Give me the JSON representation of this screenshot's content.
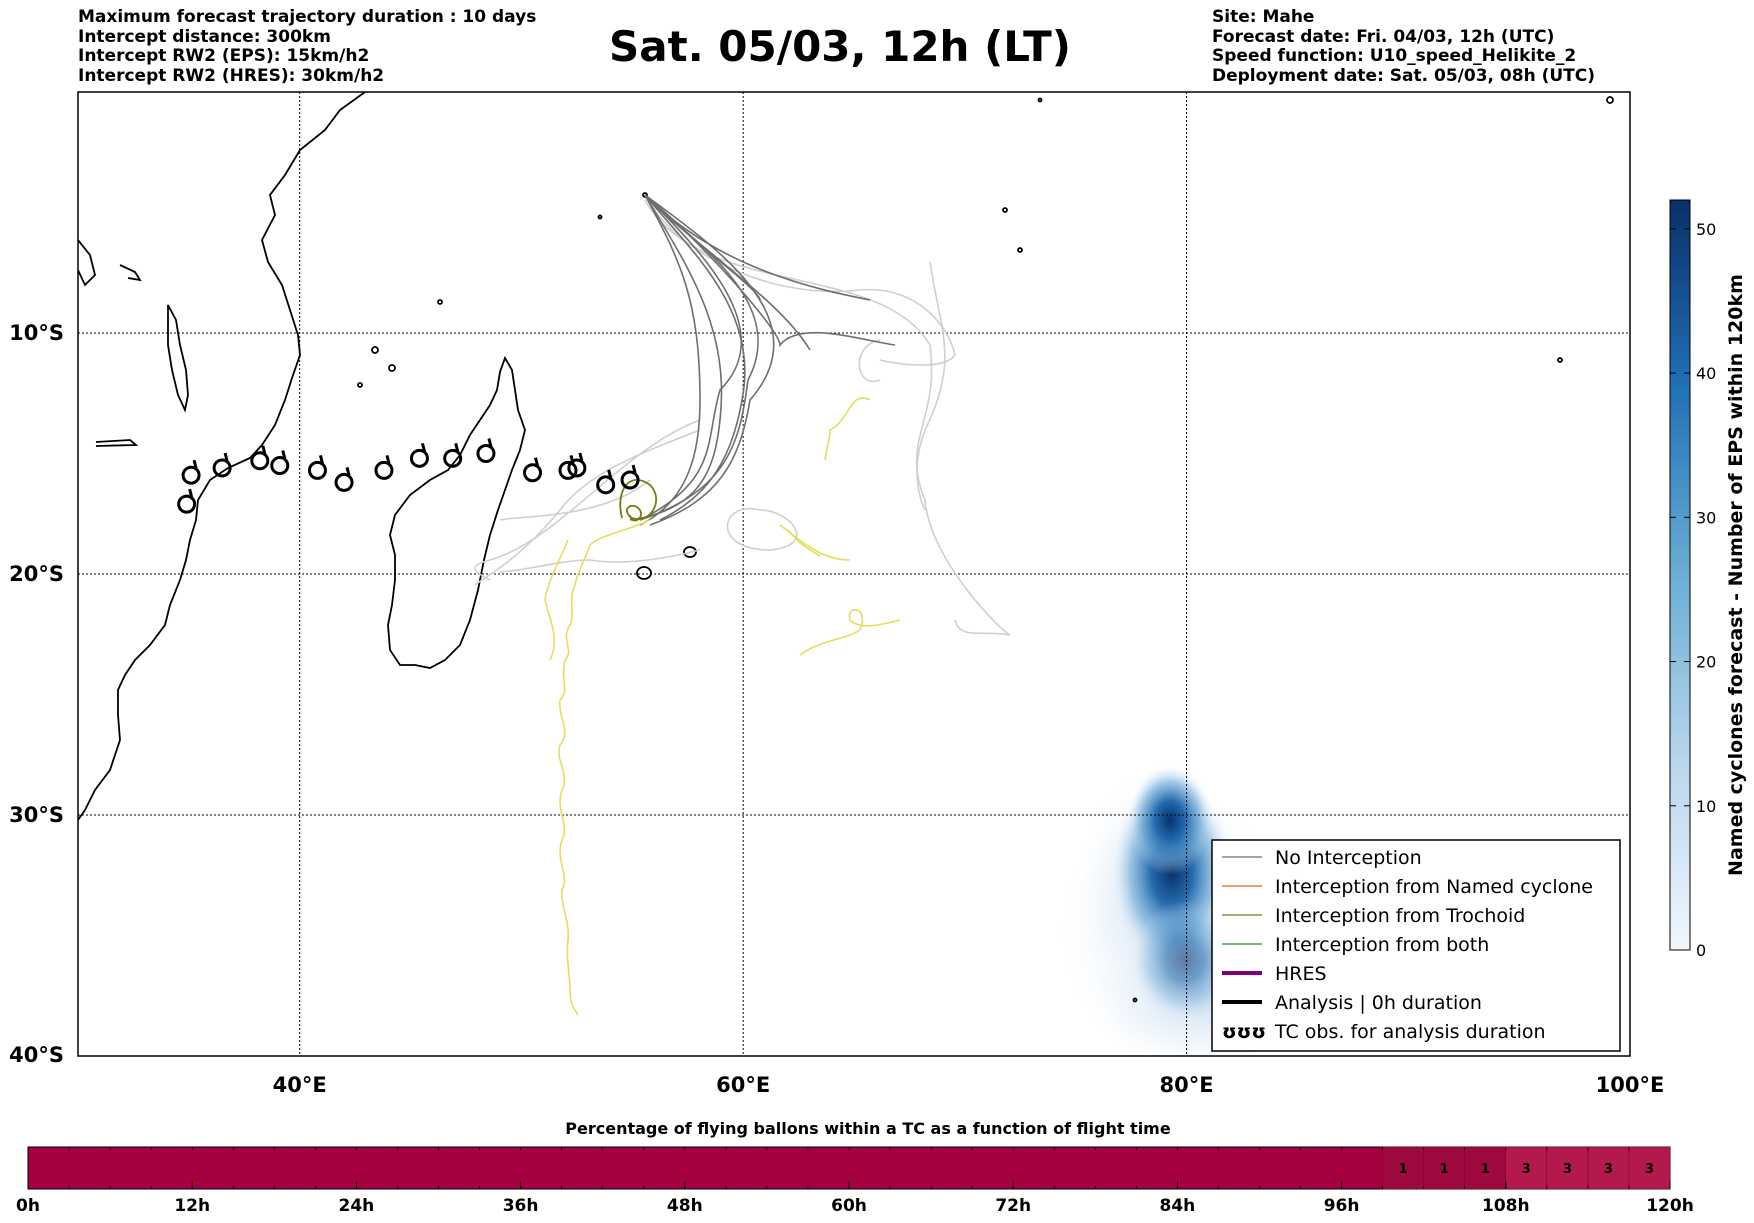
{
  "header": {
    "left_lines": [
      "Maximum forecast trajectory duration : 10 days",
      "Intercept distance: 300km",
      "Intercept RW2 (EPS):  15km/h2",
      "Intercept RW2 (HRES): 30km/h2"
    ],
    "title": "Sat. 05/03, 12h (LT)",
    "right_lines": [
      "Site: Mahe",
      "Forecast date: Fri. 04/03, 12h (UTC)",
      "Speed function: U10_speed_Helikite_2",
      "Deployment date: Sat. 05/03, 08h (UTC)"
    ]
  },
  "map": {
    "lon_range": [
      30,
      100
    ],
    "lat_range": [
      -40,
      0
    ],
    "lon_ticks": [
      {
        "value": 40,
        "label": "40°E"
      },
      {
        "value": 60,
        "label": "60°E"
      },
      {
        "value": 80,
        "label": "80°E"
      },
      {
        "value": 100,
        "label": "100°E"
      }
    ],
    "lat_ticks": [
      {
        "value": -10,
        "label": "10°S"
      },
      {
        "value": -20,
        "label": "20°S"
      },
      {
        "value": -30,
        "label": "30°S"
      },
      {
        "value": -40,
        "label": "40°S"
      }
    ],
    "gridlines": "dotted",
    "colors": {
      "no_interception": "#6e6e6e",
      "no_interception_light": "#cfcfcf",
      "trochoid": "#7a7a10",
      "yellow_track": "#e6de5a",
      "coast": "#000000"
    },
    "tc_obs_positions": [
      [
        34.9,
        -17.1
      ],
      [
        35.1,
        -15.9
      ],
      [
        36.5,
        -15.6
      ],
      [
        38.2,
        -15.3
      ],
      [
        39.1,
        -15.5
      ],
      [
        40.8,
        -15.7
      ],
      [
        42.0,
        -16.2
      ],
      [
        43.8,
        -15.7
      ],
      [
        45.4,
        -15.2
      ],
      [
        46.9,
        -15.2
      ],
      [
        48.4,
        -15.0
      ],
      [
        50.5,
        -15.8
      ],
      [
        52.1,
        -15.7
      ],
      [
        52.5,
        -15.6
      ],
      [
        53.8,
        -16.3
      ],
      [
        54.9,
        -16.1
      ]
    ]
  },
  "legend": {
    "items": [
      {
        "label": "No Interception",
        "color": "#6e6e6e",
        "width": 1.2
      },
      {
        "label": "Interception from Named cyclone",
        "color": "#e8601c",
        "width": 1.2
      },
      {
        "label": "Interception from Trochoid",
        "color": "#7a7a10",
        "width": 1.2
      },
      {
        "label": "Interception from both",
        "color": "#1a8c1a",
        "width": 1.2
      },
      {
        "label": "HRES",
        "color": "#800080",
        "width": 4
      },
      {
        "label": "Analysis | 0h duration",
        "color": "#000000",
        "width": 4
      }
    ],
    "tc_label": "TC obs. for analysis duration",
    "tc_symbol": "ʊʊʊ"
  },
  "colorbar": {
    "label": "Named cyclones forecast - Number of EPS within 120km",
    "ticks": [
      0,
      10,
      20,
      30,
      40,
      50
    ],
    "max": 52,
    "color_low": "#e3eef9",
    "color_high": "#08306b"
  },
  "bottom_bar": {
    "title": "Percentage of flying ballons within a TC as a function of flight time",
    "time_ticks": [
      "0h",
      "12h",
      "24h",
      "36h",
      "48h",
      "60h",
      "72h",
      "84h",
      "96h",
      "108h",
      "120h"
    ],
    "max_hours": 120,
    "base_color": "#a50040",
    "cells": [
      {
        "start_h": 99,
        "end_h": 102,
        "value": "1"
      },
      {
        "start_h": 102,
        "end_h": 105,
        "value": "1"
      },
      {
        "start_h": 105,
        "end_h": 108,
        "value": "1"
      },
      {
        "start_h": 108,
        "end_h": 111,
        "value": "3"
      },
      {
        "start_h": 111,
        "end_h": 114,
        "value": "3"
      },
      {
        "start_h": 114,
        "end_h": 117,
        "value": "3"
      },
      {
        "start_h": 117,
        "end_h": 120,
        "value": "3"
      }
    ]
  }
}
